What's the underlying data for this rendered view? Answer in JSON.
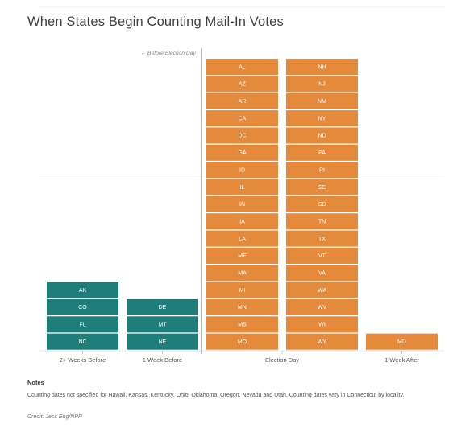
{
  "title": "When States Begin Counting Mail-In Votes",
  "annotation": "← Before Election Day",
  "notes_heading": "Notes",
  "notes_text": "Counting dates not specified for Hawaii, Kansas, Kentucky, Ohio, Oklahoma, Oregon, Nevada and Utah. Counting dates vary in Connecticut by locality.",
  "credit": "Credit: Jess Eng/NPR",
  "colors": {
    "before": "#1f7e7a",
    "on_or_after": "#e5893a"
  },
  "chart_data": {
    "type": "bar",
    "subtype": "stacked-unit",
    "title": "When States Begin Counting Mail-In Votes",
    "groups": [
      {
        "category": "2+ Weeks Before",
        "color": "before",
        "columns": [
          [
            "NC",
            "FL",
            "CO",
            "AK"
          ]
        ]
      },
      {
        "category": "1 Week Before",
        "color": "before",
        "columns": [
          [
            "NE",
            "MT",
            "DE"
          ]
        ]
      },
      {
        "category": "Election Day",
        "color": "on_or_after",
        "columns": [
          [
            "MO",
            "MS",
            "MN",
            "MI",
            "MA",
            "ME",
            "LA",
            "IA",
            "IN",
            "IL",
            "ID",
            "GA",
            "DC",
            "CA",
            "AR",
            "AZ",
            "AL"
          ],
          [
            "WY",
            "WI",
            "WV",
            "WA",
            "VA",
            "VT",
            "TX",
            "TN",
            "SD",
            "SC",
            "RI",
            "PA",
            "ND",
            "NY",
            "NM",
            "NJ",
            "NH"
          ]
        ]
      },
      {
        "category": "1 Week After",
        "color": "on_or_after",
        "columns": [
          [
            "MD"
          ]
        ]
      }
    ],
    "counts": [
      4,
      3,
      34,
      1
    ],
    "grid": true,
    "divider_label": "← Before Election Day"
  }
}
